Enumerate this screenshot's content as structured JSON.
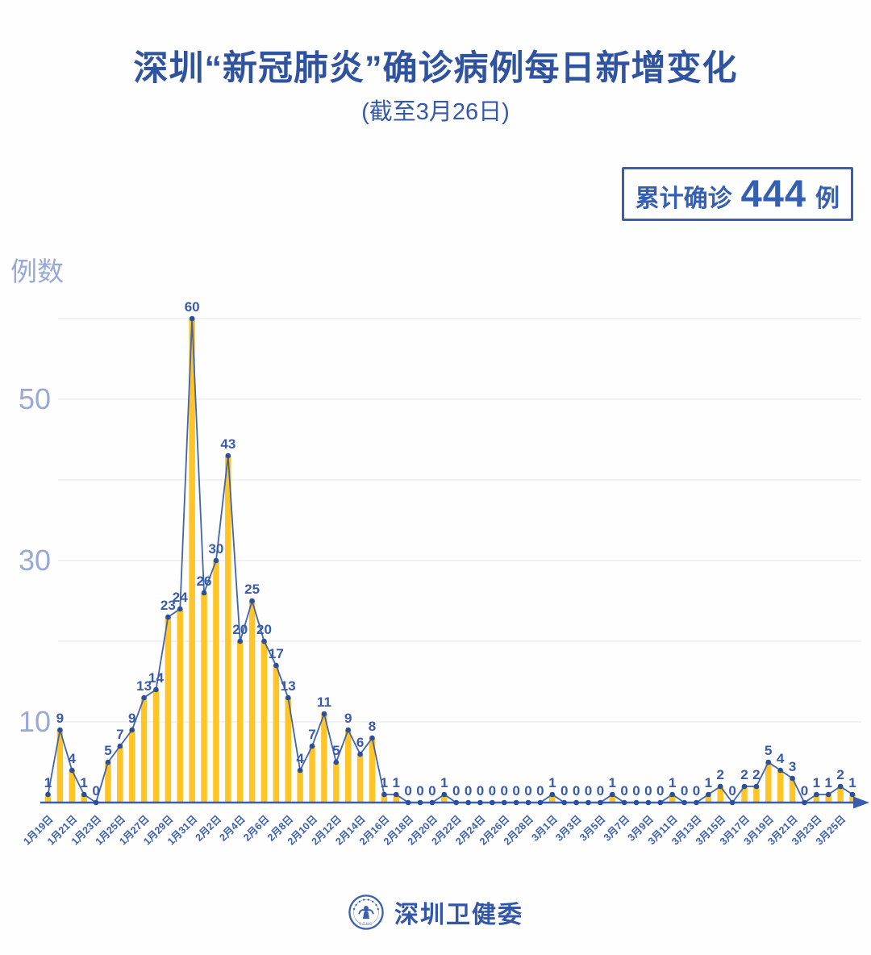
{
  "header": {
    "title": "深圳“新冠肺炎”确诊病例每日新增变化",
    "subtitle": "(截至3月26日)"
  },
  "badge": {
    "label": "累计确诊",
    "value": "444",
    "unit": "例"
  },
  "footer": {
    "org_name": "深圳卫健委",
    "logo_caption": "SZHC"
  },
  "chart_data": {
    "type": "bar",
    "line_overlay": true,
    "title": "深圳“新冠肺炎”确诊病例每日新增变化",
    "ylabel": "例数",
    "xlabel": "",
    "categories": [
      "1月19日",
      "1月20日",
      "1月21日",
      "1月22日",
      "1月23日",
      "1月24日",
      "1月25日",
      "1月26日",
      "1月27日",
      "1月28日",
      "1月29日",
      "1月30日",
      "1月31日",
      "2月1日",
      "2月2日",
      "2月3日",
      "2月4日",
      "2月5日",
      "2月6日",
      "2月7日",
      "2月8日",
      "2月9日",
      "2月10日",
      "2月11日",
      "2月12日",
      "2月13日",
      "2月14日",
      "2月15日",
      "2月16日",
      "2月17日",
      "2月18日",
      "2月19日",
      "2月20日",
      "2月21日",
      "2月22日",
      "2月23日",
      "2月24日",
      "2月25日",
      "2月26日",
      "2月27日",
      "2月28日",
      "2月29日",
      "3月1日",
      "3月2日",
      "3月3日",
      "3月4日",
      "3月5日",
      "3月6日",
      "3月7日",
      "3月8日",
      "3月9日",
      "3月10日",
      "3月11日",
      "3月12日",
      "3月13日",
      "3月14日",
      "3月15日",
      "3月16日",
      "3月17日",
      "3月18日",
      "3月19日",
      "3月20日",
      "3月21日",
      "3月22日",
      "3月23日",
      "3月24日",
      "3月25日",
      "3月26日"
    ],
    "values": [
      1,
      9,
      4,
      1,
      0,
      5,
      7,
      9,
      13,
      14,
      23,
      24,
      60,
      26,
      30,
      43,
      20,
      25,
      20,
      17,
      13,
      4,
      7,
      11,
      5,
      9,
      6,
      8,
      1,
      1,
      0,
      0,
      0,
      1,
      0,
      0,
      0,
      0,
      0,
      0,
      0,
      0,
      1,
      0,
      0,
      0,
      0,
      1,
      0,
      0,
      0,
      0,
      1,
      0,
      0,
      1,
      2,
      0,
      2,
      2,
      5,
      4,
      3,
      0,
      1,
      1,
      2,
      1
    ],
    "total": 444,
    "yticks_labeled": [
      10,
      30,
      50
    ],
    "gridline_values": [
      10,
      20,
      30,
      40,
      50,
      60
    ],
    "ylim": [
      0,
      62
    ],
    "x_label_every": 2,
    "grid": "on",
    "legend_position": "none",
    "colors": {
      "bar": "#FFC527",
      "line": "#4064AE",
      "marker": "#2C4F9D",
      "data_label": "#3A5BAB",
      "axis": "#3A5CAD",
      "grid": "#ECECF0",
      "y_tick": "#9AA8D6",
      "x_tick": "#3E60AF"
    }
  }
}
